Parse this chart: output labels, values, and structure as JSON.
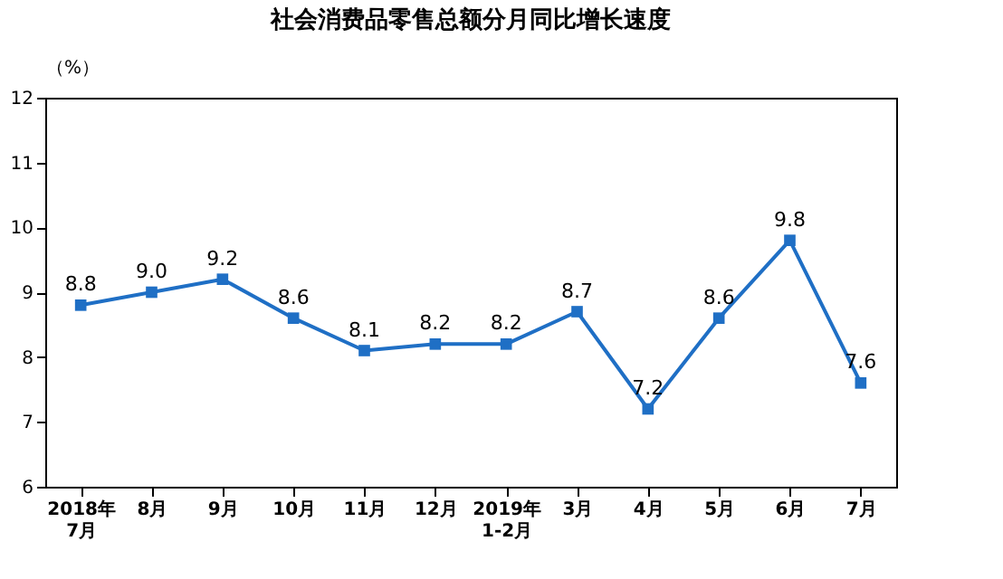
{
  "chart_data": {
    "type": "line",
    "title": "社会消费品零售总额分月同比增长速度",
    "ylabel": "（%）",
    "categories": [
      "2018年\n7月",
      "8月",
      "9月",
      "10月",
      "11月",
      "12月",
      "2019年\n1-2月",
      "3月",
      "4月",
      "5月",
      "6月",
      "7月"
    ],
    "series": [
      {
        "color": "#1f6fc5",
        "values": [
          8.8,
          9.0,
          9.2,
          8.6,
          8.1,
          8.2,
          8.2,
          8.7,
          7.2,
          8.6,
          9.8,
          7.6
        ]
      }
    ],
    "value_labels": [
      "8.8",
      "9.0",
      "9.2",
      "8.6",
      "8.1",
      "8.2",
      "8.2",
      "8.7",
      "7.2",
      "8.6",
      "9.8",
      "7.6"
    ],
    "ylim": [
      6,
      12
    ],
    "yticks": [
      6,
      7,
      8,
      9,
      10,
      11,
      12
    ],
    "grid": false,
    "legend": false,
    "marker": "square",
    "line_style": "solid"
  }
}
